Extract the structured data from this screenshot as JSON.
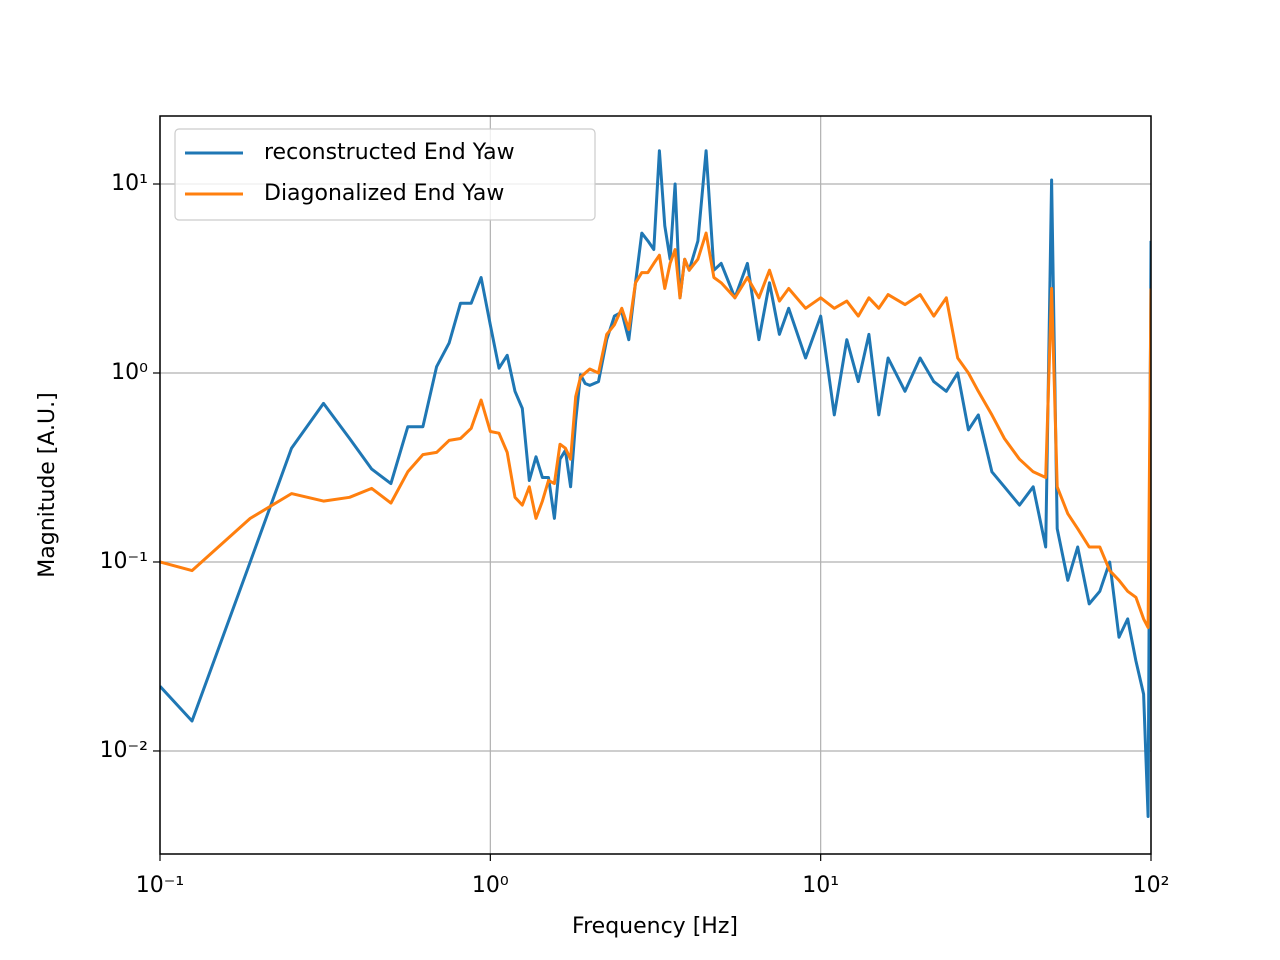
{
  "chart_data": {
    "type": "line",
    "xlabel": "Frequency [Hz]",
    "ylabel": "Magnitude [A.U.]",
    "xscale": "log",
    "yscale": "log",
    "grid": true,
    "legend": "upper left",
    "xlim": [
      0.1,
      100
    ],
    "ylim": [
      0.00285,
      22.9
    ],
    "xticks": [
      {
        "value": 0.1,
        "label": "10⁻¹"
      },
      {
        "value": 1,
        "label": "10⁰"
      },
      {
        "value": 10,
        "label": "10¹"
      },
      {
        "value": 100,
        "label": "10²"
      }
    ],
    "yticks": [
      {
        "value": 0.01,
        "label": "10⁻²"
      },
      {
        "value": 0.1,
        "label": "10⁻¹"
      },
      {
        "value": 1,
        "label": "10⁰"
      },
      {
        "value": 10,
        "label": "10¹"
      }
    ],
    "x": [
      0.1,
      0.125,
      0.1875,
      0.25,
      0.3125,
      0.375,
      0.4375,
      0.5,
      0.5625,
      0.625,
      0.6875,
      0.75,
      0.8125,
      0.875,
      0.9375,
      1.0,
      1.0625,
      1.125,
      1.1875,
      1.25,
      1.3125,
      1.375,
      1.4375,
      1.5,
      1.5625,
      1.625,
      1.6875,
      1.75,
      1.8125,
      1.875,
      1.9375,
      2.0,
      2.125,
      2.25,
      2.375,
      2.5,
      2.625,
      2.75,
      2.875,
      3.0,
      3.125,
      3.25,
      3.375,
      3.5,
      3.625,
      3.75,
      3.875,
      4.0,
      4.25,
      4.5,
      4.75,
      5.0,
      5.5,
      6,
      6.5,
      7,
      7.5,
      8,
      9,
      10,
      11,
      12,
      13,
      14,
      15,
      16,
      18,
      20,
      22,
      24,
      26,
      28,
      30,
      33,
      36,
      40,
      44,
      48,
      50,
      52,
      56,
      60,
      65,
      70,
      75,
      80,
      85,
      90,
      95,
      98,
      100
    ],
    "series": [
      {
        "name": "reconstructed End Yaw",
        "color": "#1f77b4",
        "values": [
          0.022,
          0.0144,
          0.1,
          0.4,
          0.69,
          0.45,
          0.31,
          0.26,
          0.52,
          0.52,
          1.08,
          1.44,
          2.34,
          2.34,
          3.2,
          1.8,
          1.06,
          1.24,
          0.8,
          0.65,
          0.27,
          0.36,
          0.28,
          0.28,
          0.17,
          0.35,
          0.39,
          0.25,
          0.56,
          0.98,
          0.88,
          0.86,
          0.9,
          1.5,
          2.0,
          2.1,
          1.5,
          3.0,
          5.5,
          5.0,
          4.5,
          15,
          6,
          4,
          10,
          2.5,
          4,
          3.5,
          5,
          15,
          3.5,
          3.8,
          2.5,
          3.8,
          1.5,
          3,
          1.6,
          2.2,
          1.2,
          2.0,
          0.6,
          1.5,
          0.9,
          1.6,
          0.6,
          1.2,
          0.8,
          1.2,
          0.9,
          0.8,
          1.0,
          0.5,
          0.6,
          0.3,
          0.25,
          0.2,
          0.25,
          0.12,
          10.5,
          0.15,
          0.08,
          0.12,
          0.06,
          0.07,
          0.1,
          0.04,
          0.05,
          0.03,
          0.02,
          0.0045,
          5.0
        ]
      },
      {
        "name": "Diagonalized End Yaw",
        "color": "#ff7f0e",
        "values": [
          0.1,
          0.09,
          0.17,
          0.23,
          0.21,
          0.22,
          0.245,
          0.205,
          0.3,
          0.37,
          0.38,
          0.44,
          0.45,
          0.51,
          0.72,
          0.49,
          0.48,
          0.38,
          0.22,
          0.2,
          0.25,
          0.17,
          0.21,
          0.27,
          0.26,
          0.42,
          0.4,
          0.35,
          0.75,
          0.95,
          1.0,
          1.05,
          1.0,
          1.6,
          1.8,
          2.2,
          1.7,
          3.0,
          3.4,
          3.4,
          3.8,
          4.2,
          2.8,
          3.8,
          4.5,
          2.5,
          4.0,
          3.5,
          4.0,
          5.5,
          3.2,
          3.0,
          2.5,
          3.2,
          2.5,
          3.5,
          2.4,
          2.8,
          2.2,
          2.5,
          2.2,
          2.4,
          2.0,
          2.5,
          2.2,
          2.6,
          2.3,
          2.6,
          2.0,
          2.5,
          1.2,
          1.0,
          0.8,
          0.6,
          0.45,
          0.35,
          0.3,
          0.28,
          2.8,
          0.25,
          0.18,
          0.15,
          0.12,
          0.12,
          0.09,
          0.08,
          0.07,
          0.065,
          0.05,
          0.045,
          2.8
        ]
      }
    ]
  }
}
